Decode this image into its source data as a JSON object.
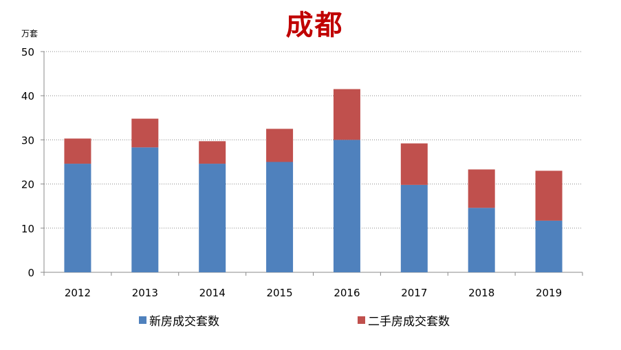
{
  "title": "成都",
  "unit_label": "万套",
  "colors": {
    "new": "#4f81bd",
    "second": "#c0504d",
    "title": "#c00000"
  },
  "legend": [
    {
      "label": "新房成交套数",
      "color": "#4f81bd"
    },
    {
      "label": "二手房成交套数",
      "color": "#c0504d"
    }
  ],
  "chart_data": {
    "type": "bar",
    "stacked": true,
    "title": "成都",
    "xlabel": "",
    "ylabel": "万套",
    "ylim": [
      0,
      50
    ],
    "yticks": [
      0,
      10,
      20,
      30,
      40,
      50
    ],
    "grid": true,
    "legend_position": "bottom",
    "categories": [
      "2012",
      "2013",
      "2014",
      "2015",
      "2016",
      "2017",
      "2018",
      "2019"
    ],
    "series": [
      {
        "name": "新房成交套数",
        "values": [
          24.6,
          28.3,
          24.6,
          25.0,
          30.0,
          19.8,
          14.6,
          11.7
        ]
      },
      {
        "name": "二手房成交套数",
        "values": [
          5.7,
          6.5,
          5.1,
          7.5,
          11.5,
          9.4,
          8.7,
          11.3
        ]
      }
    ]
  }
}
